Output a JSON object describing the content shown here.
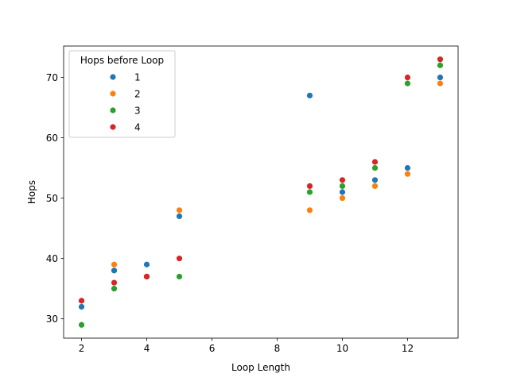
{
  "chart_data": {
    "type": "scatter",
    "xlabel": "Loop Length",
    "ylabel": "Hops",
    "xlim": [
      1.45,
      13.55
    ],
    "ylim": [
      26.8,
      75.2
    ],
    "xticks": [
      2,
      4,
      6,
      8,
      10,
      12
    ],
    "yticks": [
      30,
      40,
      50,
      60,
      70
    ],
    "grid": false,
    "legend": {
      "title": "Hops before Loop",
      "placement": "top-left"
    },
    "series": [
      {
        "name": "1",
        "color": "#1f77b4",
        "points": [
          [
            2,
            32
          ],
          [
            3,
            38
          ],
          [
            4,
            39
          ],
          [
            5,
            47
          ],
          [
            9,
            67
          ],
          [
            10,
            51
          ],
          [
            11,
            53
          ],
          [
            12,
            55
          ],
          [
            13,
            70
          ]
        ]
      },
      {
        "name": "2",
        "color": "#ff7f0e",
        "points": [
          [
            2,
            33
          ],
          [
            3,
            39
          ],
          [
            4,
            37
          ],
          [
            5,
            48
          ],
          [
            9,
            48
          ],
          [
            10,
            50
          ],
          [
            11,
            52
          ],
          [
            12,
            54
          ],
          [
            13,
            69
          ]
        ]
      },
      {
        "name": "3",
        "color": "#2ca02c",
        "points": [
          [
            2,
            29
          ],
          [
            3,
            35
          ],
          [
            4,
            37
          ],
          [
            5,
            37
          ],
          [
            9,
            51
          ],
          [
            10,
            52
          ],
          [
            11,
            55
          ],
          [
            12,
            69
          ],
          [
            13,
            72
          ]
        ]
      },
      {
        "name": "4",
        "color": "#d62728",
        "points": [
          [
            2,
            33
          ],
          [
            3,
            36
          ],
          [
            4,
            37
          ],
          [
            5,
            40
          ],
          [
            9,
            52
          ],
          [
            10,
            53
          ],
          [
            11,
            56
          ],
          [
            12,
            70
          ],
          [
            13,
            73
          ]
        ]
      }
    ]
  }
}
